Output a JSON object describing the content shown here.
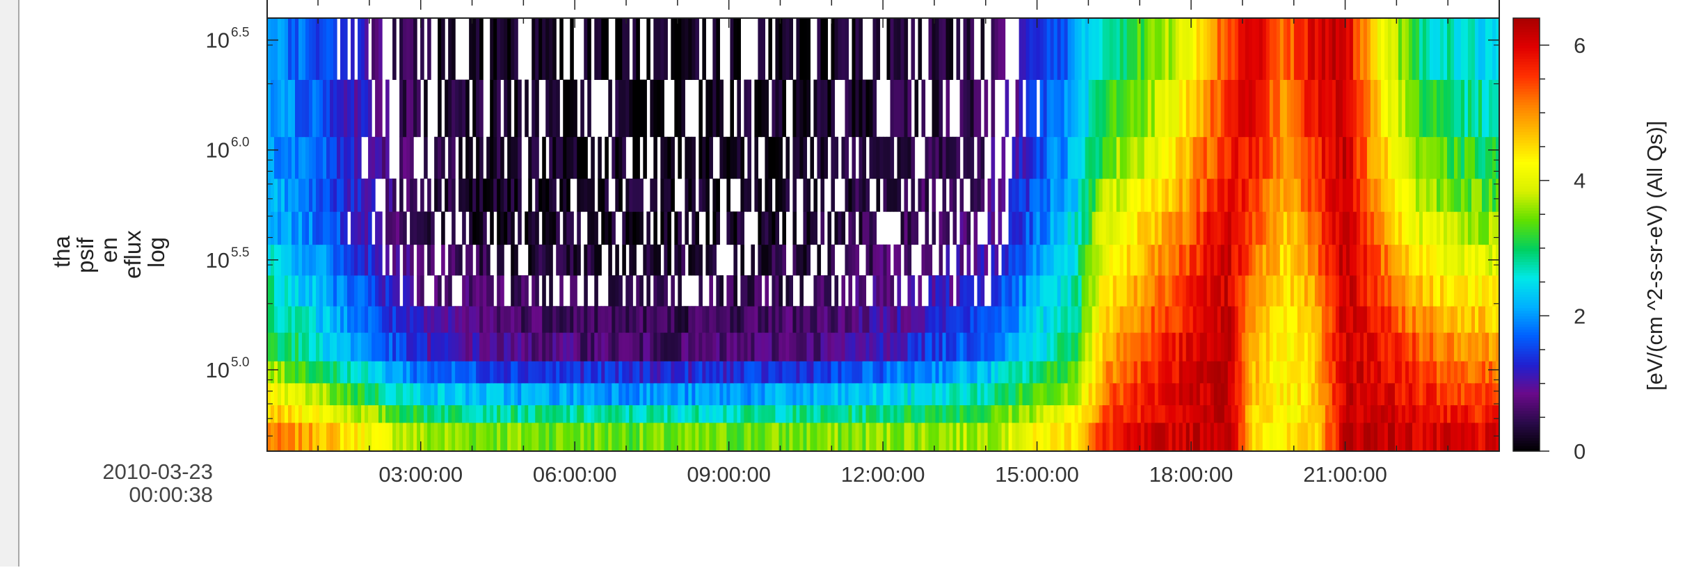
{
  "chart_data": {
    "type": "heatmap",
    "title": "",
    "ylabel_lines": [
      "tha",
      "psif",
      "en",
      "eflux",
      "log"
    ],
    "x_start_label": [
      "2010-03-23",
      "00:00:38"
    ],
    "x_tick_labels": [
      "03:00:00",
      "06:00:00",
      "09:00:00",
      "12:00:00",
      "15:00:00",
      "18:00:00",
      "21:00:00"
    ],
    "x_hours_range": [
      0.01,
      24.0
    ],
    "y_log_range": [
      4.63,
      6.6
    ],
    "y_ticks": [
      {
        "log": 5.0,
        "base": "10",
        "exp": "5.0"
      },
      {
        "log": 5.5,
        "base": "10",
        "exp": "5.5"
      },
      {
        "log": 6.0,
        "base": "10",
        "exp": "6.0"
      },
      {
        "log": 6.5,
        "base": "10",
        "exp": "6.5"
      }
    ],
    "energy_band_log_edges": [
      4.63,
      4.76,
      4.84,
      4.94,
      5.04,
      5.17,
      5.29,
      5.43,
      5.57,
      5.72,
      5.87,
      6.06,
      6.32,
      6.6
    ],
    "colorbar": {
      "label": "[eV/(cm ^2-s-sr-eV) (All Qs)]",
      "range": [
        0,
        6.4
      ],
      "ticks": [
        0,
        2,
        4,
        6
      ],
      "colors": [
        "#000000",
        "#2a0a4a",
        "#6a0a8a",
        "#2020d0",
        "#0060ff",
        "#00b0ff",
        "#00e8e8",
        "#00d060",
        "#60e000",
        "#d8f000",
        "#ffff00",
        "#ffc000",
        "#ff8000",
        "#ff3000",
        "#e00000",
        "#a80000"
      ]
    },
    "band_value_profile": {
      "description_hours": [
        0.0,
        1.0,
        3.0,
        5.0,
        8.0,
        11.0,
        14.0,
        15.8,
        16.3,
        17.5,
        18.7,
        19.2,
        19.8,
        20.4,
        21.0,
        21.6,
        22.5,
        24.0
      ],
      "low_band": [
        5.1,
        4.8,
        3.6,
        3.5,
        3.4,
        3.5,
        3.7,
        4.6,
        5.6,
        6.1,
        6.3,
        4.6,
        4.3,
        4.5,
        6.2,
        6.3,
        6.0,
        5.9
      ],
      "mid_band": [
        3.3,
        2.6,
        1.2,
        0.8,
        0.6,
        0.8,
        1.8,
        3.1,
        4.8,
        5.7,
        6.2,
        4.8,
        4.2,
        4.6,
        6.1,
        5.9,
        5.3,
        4.9
      ],
      "high_band": [
        2.3,
        1.8,
        0.4,
        0.2,
        0.2,
        0.3,
        0.8,
        2.6,
        4.0,
        4.8,
        6.1,
        5.4,
        4.6,
        5.2,
        6.3,
        5.2,
        4.0,
        3.6
      ],
      "top_band": [
        2.0,
        1.6,
        0.3,
        0.2,
        0.1,
        0.2,
        0.4,
        2.0,
        2.8,
        3.6,
        5.4,
        6.2,
        5.1,
        6.0,
        6.1,
        4.4,
        2.8,
        2.4
      ]
    }
  }
}
